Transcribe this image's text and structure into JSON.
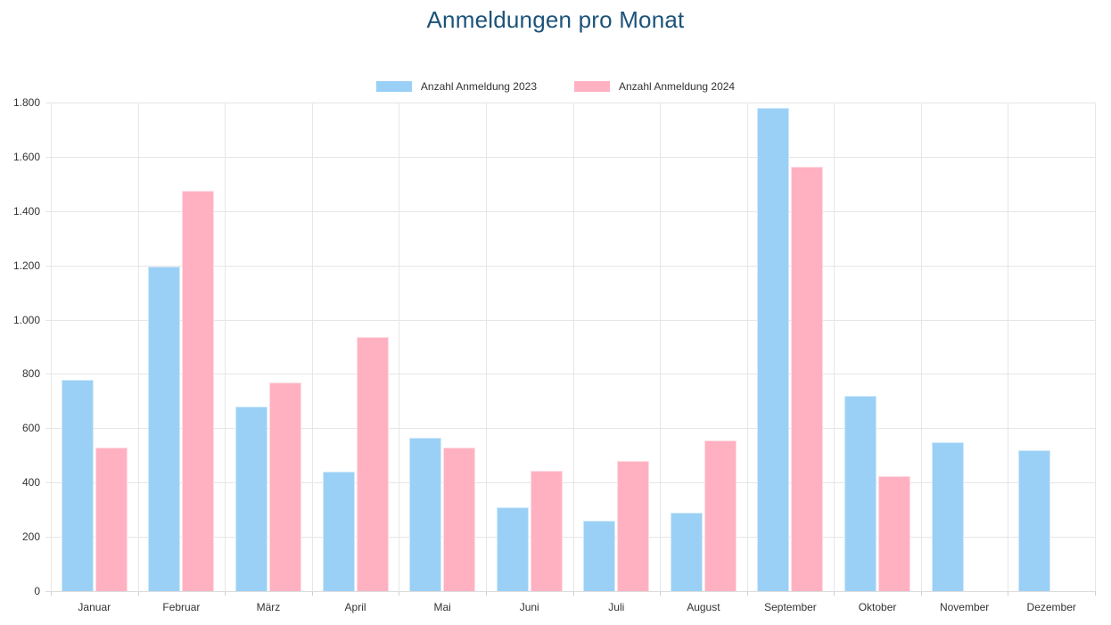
{
  "page": {
    "background": "#ffffff"
  },
  "chart_data": {
    "type": "bar",
    "title": "Anmeldungen pro Monat",
    "title_color": "#1d5379",
    "legend_position": "top",
    "grid": true,
    "categories": [
      "Januar",
      "Februar",
      "März",
      "April",
      "Mai",
      "Juni",
      "Juli",
      "August",
      "September",
      "Oktober",
      "November",
      "Dezember"
    ],
    "series": [
      {
        "name": "Anzahl Anmeldung 2023",
        "color": "#9ad0f5",
        "values": [
          780,
          1195,
          680,
          440,
          565,
          310,
          260,
          290,
          1780,
          720,
          550,
          520
        ]
      },
      {
        "name": "Anzahl Anmeldung 2024",
        "color": "#ffb1c1",
        "values": [
          530,
          1475,
          770,
          935,
          530,
          445,
          480,
          555,
          1565,
          425,
          null,
          null
        ]
      }
    ],
    "xlabel": "",
    "ylabel": "",
    "ylim": [
      0,
      1800
    ],
    "ytick_step": 200,
    "ytick_labels": [
      "0",
      "200",
      "400",
      "600",
      "800",
      "1.000",
      "1.200",
      "1.400",
      "1.600",
      "1.800"
    ]
  }
}
